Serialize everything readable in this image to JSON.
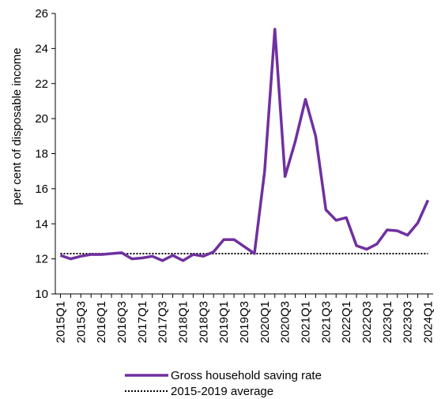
{
  "chart_data": {
    "type": "line",
    "ylabel": "per cent of disposable income",
    "ylim": [
      10,
      26
    ],
    "yticks": [
      10,
      12,
      14,
      16,
      18,
      20,
      22,
      24,
      26
    ],
    "x": [
      "2015Q1",
      "2015Q2",
      "2015Q3",
      "2015Q4",
      "2016Q1",
      "2016Q2",
      "2016Q3",
      "2016Q4",
      "2017Q1",
      "2017Q2",
      "2017Q3",
      "2017Q4",
      "2018Q1",
      "2018Q2",
      "2018Q3",
      "2018Q4",
      "2019Q1",
      "2019Q2",
      "2019Q3",
      "2019Q4",
      "2020Q1",
      "2020Q2",
      "2020Q3",
      "2020Q4",
      "2021Q1",
      "2021Q2",
      "2021Q3",
      "2021Q4",
      "2022Q1",
      "2022Q2",
      "2022Q3",
      "2022Q4",
      "2023Q1",
      "2023Q2",
      "2023Q3",
      "2023Q4",
      "2024Q1"
    ],
    "xtick_labels": [
      "2015Q1",
      "2015Q3",
      "2016Q1",
      "2016Q3",
      "2017Q1",
      "2017Q3",
      "2018Q1",
      "2018Q3",
      "2019Q1",
      "2019Q3",
      "2020Q1",
      "2020Q3",
      "2021Q1",
      "2021Q3",
      "2022Q1",
      "2022Q3",
      "2023Q1",
      "2023Q3",
      "2024Q1"
    ],
    "series": [
      {
        "name": "Gross household saving rate",
        "color": "#7030a0",
        "style": "solid",
        "values": [
          12.2,
          12.0,
          12.15,
          12.25,
          12.25,
          12.3,
          12.35,
          12.0,
          12.05,
          12.15,
          11.9,
          12.2,
          11.9,
          12.25,
          12.15,
          12.4,
          13.1,
          13.1,
          12.7,
          12.3,
          17.0,
          25.1,
          16.7,
          18.7,
          21.1,
          19.0,
          14.8,
          14.2,
          14.35,
          12.75,
          12.55,
          12.85,
          13.65,
          13.6,
          13.35,
          14.05,
          15.35
        ]
      },
      {
        "name": "2015-2019 average",
        "color": "#000000",
        "style": "dotted",
        "values": [
          12.3,
          12.3,
          12.3,
          12.3,
          12.3,
          12.3,
          12.3,
          12.3,
          12.3,
          12.3,
          12.3,
          12.3,
          12.3,
          12.3,
          12.3,
          12.3,
          12.3,
          12.3,
          12.3,
          12.3,
          12.3,
          12.3,
          12.3,
          12.3,
          12.3,
          12.3,
          12.3,
          12.3,
          12.3,
          12.3,
          12.3,
          12.3,
          12.3,
          12.3,
          12.3,
          12.3,
          12.3
        ]
      }
    ],
    "grid": false,
    "legend_position": "bottom"
  }
}
